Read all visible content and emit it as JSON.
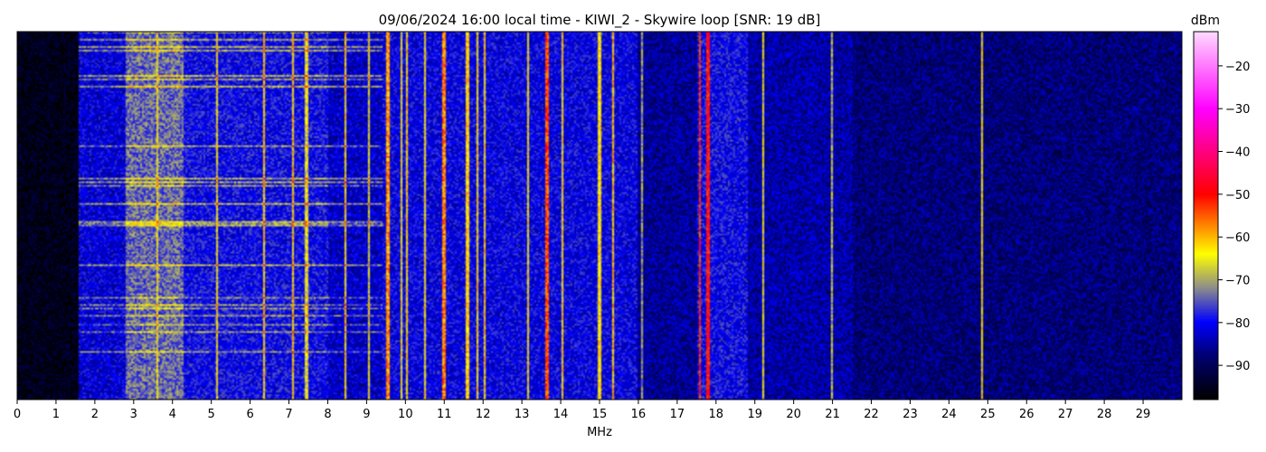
{
  "chart_data": {
    "type": "heatmap",
    "title": "09/06/2024 16:00 local time - KIWI_2 - Skywire loop [SNR: 19 dB]",
    "xlabel": "MHz",
    "ylabel": "",
    "xlim": [
      0,
      30
    ],
    "x_ticks": [
      0,
      1,
      2,
      3,
      4,
      5,
      6,
      7,
      8,
      9,
      10,
      11,
      12,
      13,
      14,
      15,
      16,
      17,
      18,
      19,
      20,
      21,
      22,
      23,
      24,
      25,
      26,
      27,
      28,
      29
    ],
    "colorbar": {
      "label": "dBm",
      "range": [
        -98,
        -12
      ],
      "ticks": [
        -20,
        -30,
        -40,
        -50,
        -60,
        -70,
        -80,
        -90
      ],
      "colormap": [
        {
          "value": -98,
          "color": "#000000"
        },
        {
          "value": -88,
          "color": "#000070"
        },
        {
          "value": -80,
          "color": "#0000ff"
        },
        {
          "value": -72,
          "color": "#8c8c8c"
        },
        {
          "value": -64,
          "color": "#ffff00"
        },
        {
          "value": -50,
          "color": "#ff0000"
        },
        {
          "value": -30,
          "color": "#ff00ff"
        },
        {
          "value": -12,
          "color": "#ffd8ff"
        }
      ]
    },
    "grid": false,
    "noise_floor": [
      {
        "from": 0,
        "to": 1.6,
        "dbm": -96
      },
      {
        "from": 1.6,
        "to": 2.8,
        "dbm": -82
      },
      {
        "from": 2.8,
        "to": 4.3,
        "dbm": -74
      },
      {
        "from": 4.3,
        "to": 8.0,
        "dbm": -80
      },
      {
        "from": 8.0,
        "to": 9.4,
        "dbm": -83
      },
      {
        "from": 9.4,
        "to": 16.0,
        "dbm": -81
      },
      {
        "from": 16.0,
        "to": 17.5,
        "dbm": -86
      },
      {
        "from": 17.5,
        "to": 18.8,
        "dbm": -80
      },
      {
        "from": 18.8,
        "to": 21.5,
        "dbm": -85
      },
      {
        "from": 21.5,
        "to": 30,
        "dbm": -88
      }
    ],
    "signals": [
      {
        "mhz": 3.6,
        "dbm": -65
      },
      {
        "mhz": 5.15,
        "dbm": -65
      },
      {
        "mhz": 6.35,
        "dbm": -62
      },
      {
        "mhz": 7.1,
        "dbm": -62
      },
      {
        "mhz": 7.45,
        "dbm": -66
      },
      {
        "mhz": 8.45,
        "dbm": -63
      },
      {
        "mhz": 9.05,
        "dbm": -66
      },
      {
        "mhz": 9.55,
        "dbm": -58
      },
      {
        "mhz": 9.9,
        "dbm": -64
      },
      {
        "mhz": 10.05,
        "dbm": -62
      },
      {
        "mhz": 10.5,
        "dbm": -64
      },
      {
        "mhz": 11.0,
        "dbm": -57
      },
      {
        "mhz": 11.6,
        "dbm": -62
      },
      {
        "mhz": 11.85,
        "dbm": -63
      },
      {
        "mhz": 12.05,
        "dbm": -62
      },
      {
        "mhz": 13.15,
        "dbm": -64
      },
      {
        "mhz": 13.65,
        "dbm": -54
      },
      {
        "mhz": 14.05,
        "dbm": -63
      },
      {
        "mhz": 15.0,
        "dbm": -63
      },
      {
        "mhz": 15.35,
        "dbm": -60
      },
      {
        "mhz": 16.1,
        "dbm": -70
      },
      {
        "mhz": 17.6,
        "dbm": -52
      },
      {
        "mhz": 17.8,
        "dbm": -50
      },
      {
        "mhz": 19.2,
        "dbm": -66
      },
      {
        "mhz": 21.0,
        "dbm": -68
      },
      {
        "mhz": 24.85,
        "dbm": -64
      }
    ]
  }
}
